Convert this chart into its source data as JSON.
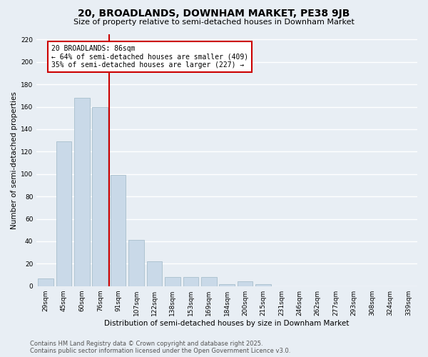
{
  "title": "20, BROADLANDS, DOWNHAM MARKET, PE38 9JB",
  "subtitle": "Size of property relative to semi-detached houses in Downham Market",
  "xlabel": "Distribution of semi-detached houses by size in Downham Market",
  "ylabel": "Number of semi-detached properties",
  "categories": [
    "29sqm",
    "45sqm",
    "60sqm",
    "76sqm",
    "91sqm",
    "107sqm",
    "122sqm",
    "138sqm",
    "153sqm",
    "169sqm",
    "184sqm",
    "200sqm",
    "215sqm",
    "231sqm",
    "246sqm",
    "262sqm",
    "277sqm",
    "293sqm",
    "308sqm",
    "324sqm",
    "339sqm"
  ],
  "values": [
    7,
    129,
    168,
    160,
    99,
    41,
    22,
    8,
    8,
    8,
    2,
    4,
    2,
    0,
    0,
    0,
    0,
    0,
    0,
    0,
    0
  ],
  "bar_color": "#c9d9e8",
  "bar_edgecolor": "#a8becc",
  "vline_color": "#cc0000",
  "annotation_title": "20 BROADLANDS: 86sqm",
  "annotation_line1": "← 64% of semi-detached houses are smaller (409)",
  "annotation_line2": "35% of semi-detached houses are larger (227) →",
  "annotation_box_color": "#cc0000",
  "ylim": [
    0,
    225
  ],
  "yticks": [
    0,
    20,
    40,
    60,
    80,
    100,
    120,
    140,
    160,
    180,
    200,
    220
  ],
  "footer_line1": "Contains HM Land Registry data © Crown copyright and database right 2025.",
  "footer_line2": "Contains public sector information licensed under the Open Government Licence v3.0.",
  "bg_color": "#e8eef4",
  "plot_bg_color": "#e8eef4",
  "grid_color": "#ffffff",
  "title_fontsize": 10,
  "subtitle_fontsize": 8,
  "axis_label_fontsize": 7.5,
  "tick_fontsize": 6.5,
  "footer_fontsize": 6,
  "annotation_fontsize": 7
}
